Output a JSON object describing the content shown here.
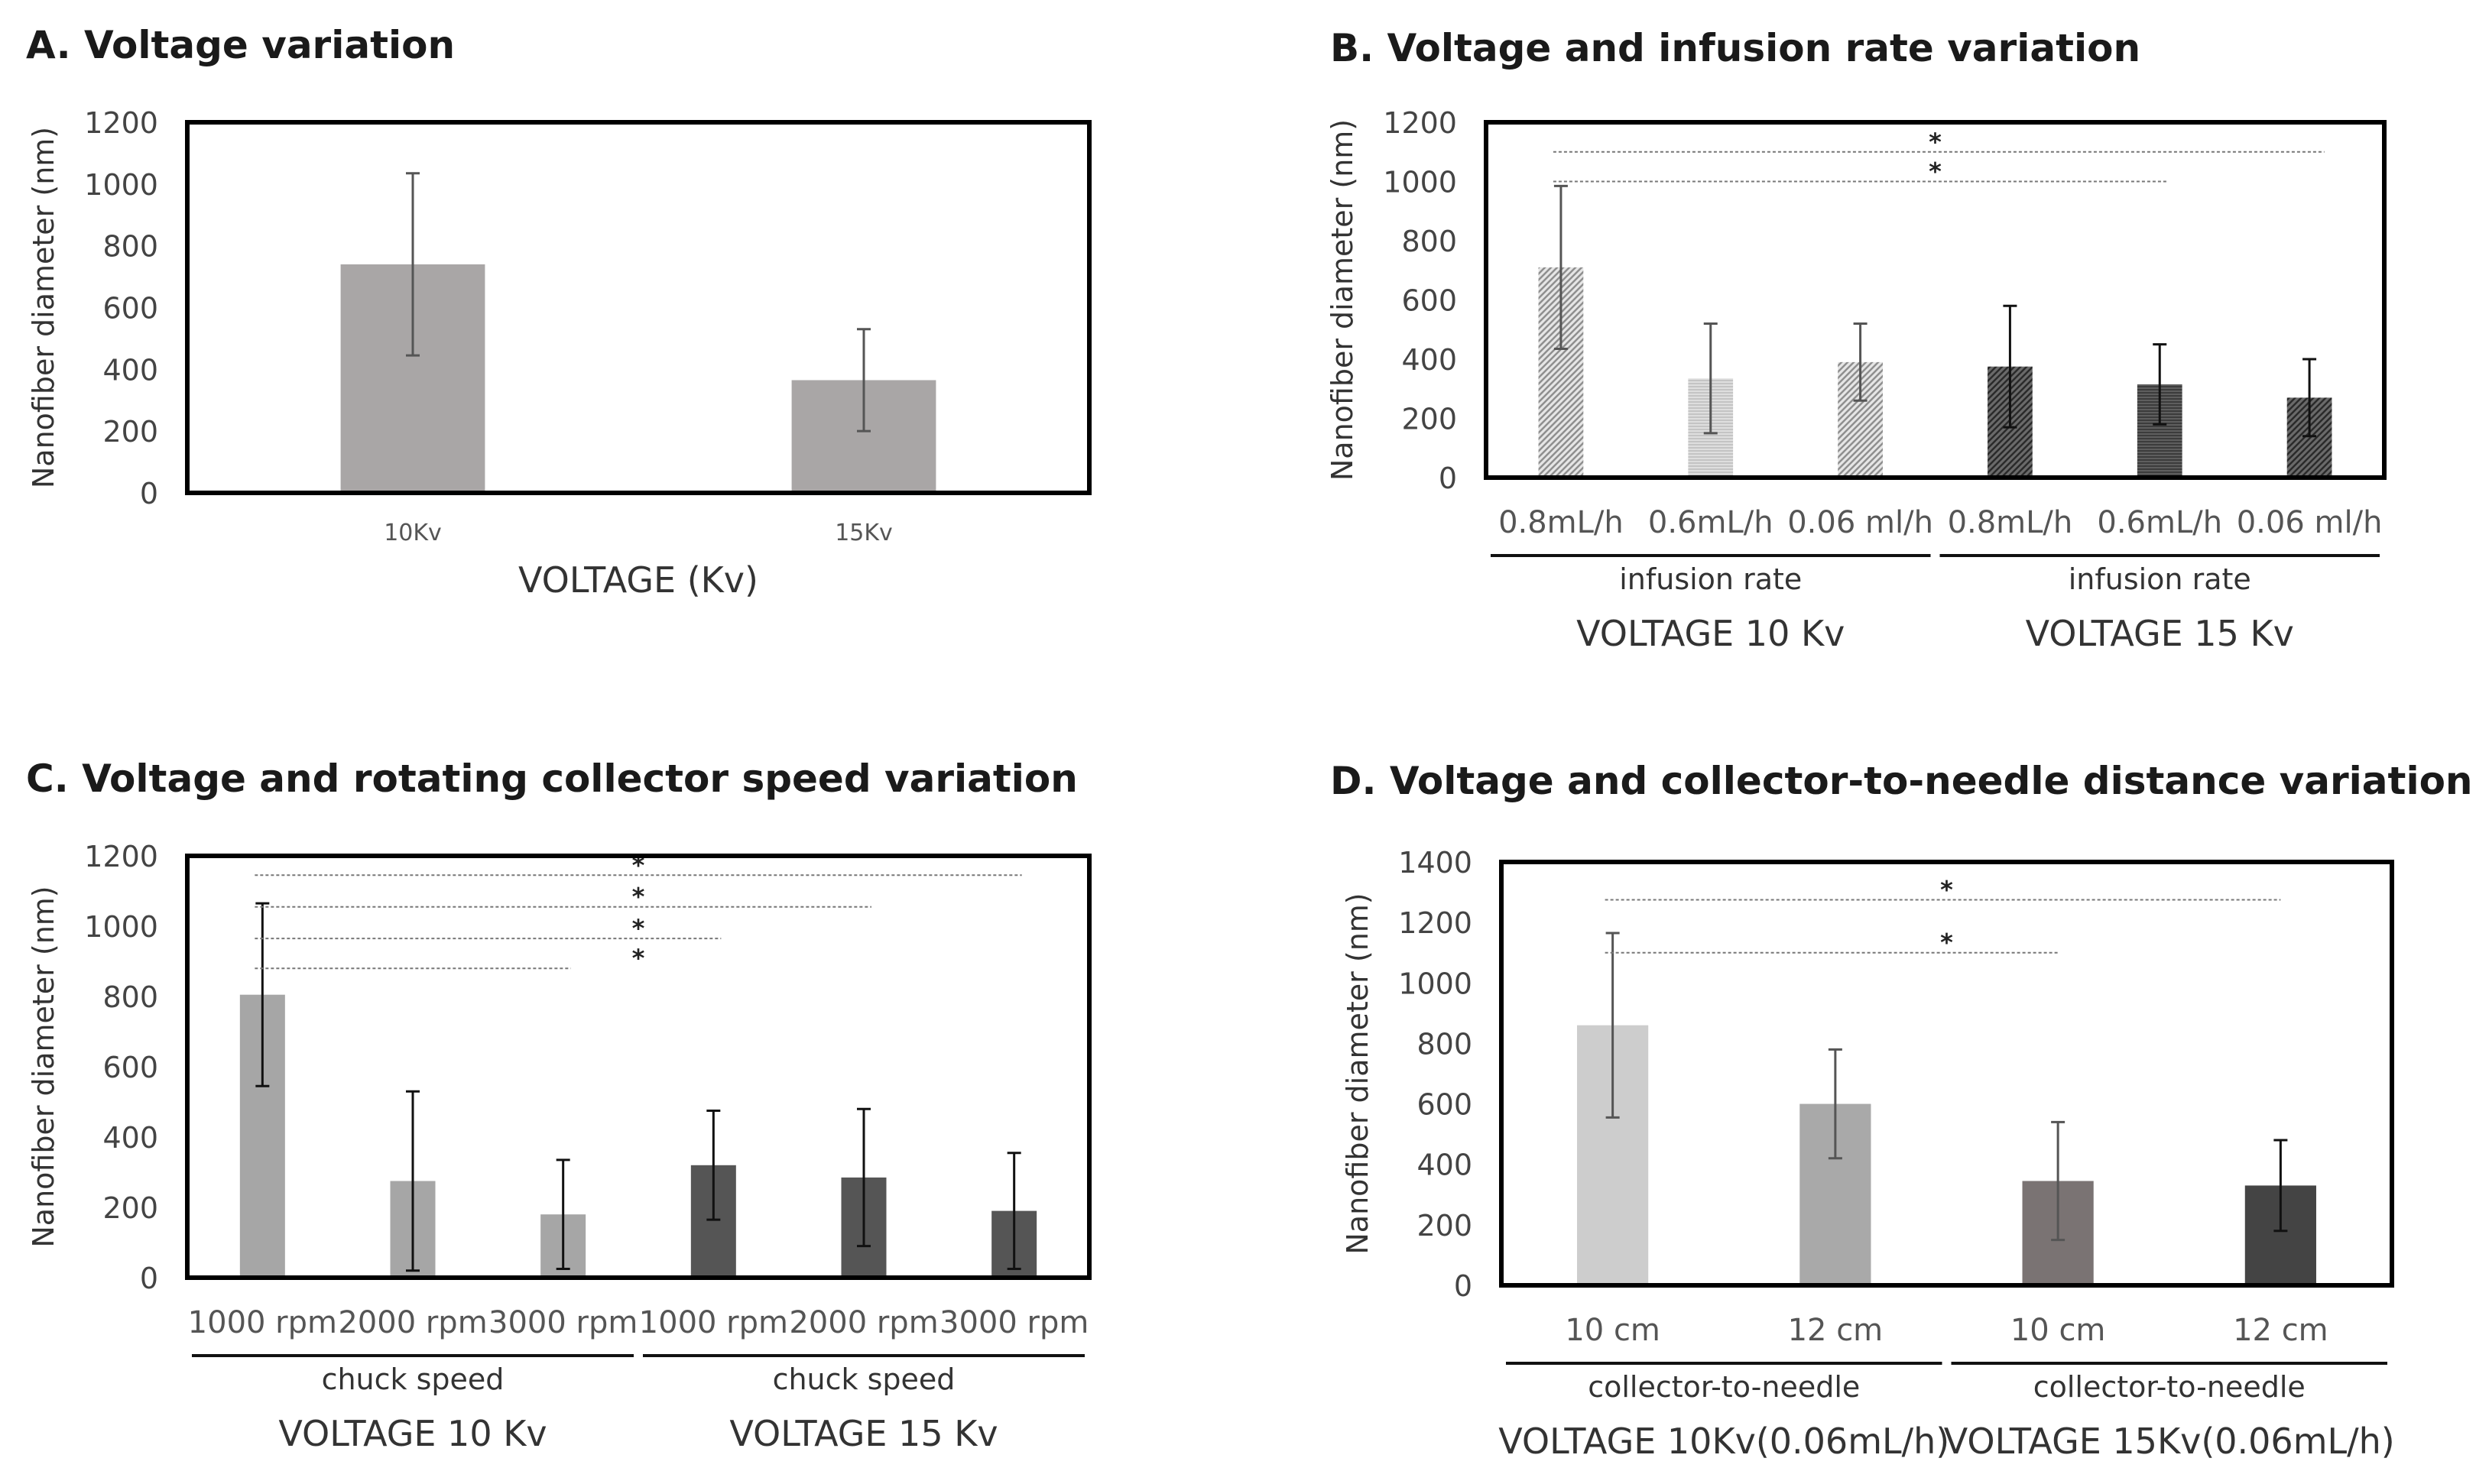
{
  "chart_data": [
    {
      "id": "A",
      "type": "bar",
      "title": "A. Voltage variation",
      "ylabel": "Nanofiber diameter (nm)",
      "xlabel": "VOLTAGE (Kv)",
      "ylim": [
        0,
        1200
      ],
      "yticks": [
        0,
        200,
        400,
        600,
        800,
        1000,
        1200
      ],
      "categories": [
        "10Kv",
        "15Kv"
      ],
      "values": [
        740,
        365
      ],
      "errors": [
        295,
        165
      ],
      "bar_colors": [
        "#a9a6a6",
        "#a9a6a6"
      ],
      "groups": [],
      "significance": []
    },
    {
      "id": "B",
      "type": "bar",
      "title": "B. Voltage and infusion rate variation",
      "ylabel": "Nanofiber diameter (nm)",
      "ylim": [
        0,
        1200
      ],
      "yticks": [
        0,
        200,
        400,
        600,
        800,
        1000,
        1200
      ],
      "categories": [
        "0.8mL/h",
        "0.6mL/h",
        "0.06 ml/h",
        "0.8mL/h",
        "0.6mL/h",
        "0.06 ml/h"
      ],
      "values": [
        710,
        335,
        390,
        375,
        315,
        270
      ],
      "errors": [
        275,
        185,
        130,
        205,
        135,
        130
      ],
      "bar_colors": [
        "#c4c4c4",
        "#c4c4c4",
        "#c4c4c4",
        "#3c3c3c",
        "#3c3c3c",
        "#3c3c3c"
      ],
      "bar_patterns": [
        "diag",
        "horiz",
        "diag",
        "diag",
        "horiz",
        "diag"
      ],
      "groups": [
        {
          "label": "infusion rate",
          "title": "VOLTAGE 10 Kv",
          "start": 0,
          "end": 2
        },
        {
          "label": "infusion rate",
          "title": "VOLTAGE 15 Kv",
          "start": 3,
          "end": 5
        }
      ],
      "significance": [
        {
          "from": 0,
          "to": 4,
          "label": "*",
          "y": 1100
        },
        {
          "from": 0,
          "to": 4,
          "label": "*",
          "y": 1000
        }
      ]
    },
    {
      "id": "C",
      "type": "bar",
      "title": "C. Voltage and rotating collector speed variation",
      "ylabel": "Nanofiber diameter (nm)",
      "ylim": [
        0,
        1200
      ],
      "yticks": [
        0,
        200,
        400,
        600,
        800,
        1000,
        1200
      ],
      "categories": [
        "1000 rpm",
        "2000 rpm",
        "3000 rpm",
        "1000 rpm",
        "2000 rpm",
        "3000 rpm"
      ],
      "values": [
        805,
        275,
        180,
        320,
        285,
        190
      ],
      "errors": [
        260,
        255,
        155,
        155,
        195,
        165
      ],
      "bar_colors": [
        "#a6a6a6",
        "#a6a6a6",
        "#a6a6a6",
        "#555555",
        "#555555",
        "#555555"
      ],
      "groups": [
        {
          "label": "chuck speed",
          "title": "VOLTAGE 10 Kv",
          "start": 0,
          "end": 2
        },
        {
          "label": "chuck speed",
          "title": "VOLTAGE 15 Kv",
          "start": 3,
          "end": 5
        }
      ],
      "significance": [
        {
          "from": 0,
          "to": 5,
          "label": "*",
          "y": 1145
        },
        {
          "from": 0,
          "to": 4,
          "label": "*",
          "y": 1055
        },
        {
          "from": 0,
          "to": 3,
          "label": "*",
          "y": 965
        },
        {
          "from": 0,
          "to": 2,
          "label": "*",
          "y": 880
        }
      ]
    },
    {
      "id": "D",
      "type": "bar",
      "title": "D. Voltage and collector-to-needle distance variation",
      "ylabel": "Nanofiber diameter (nm)",
      "ylim": [
        0,
        1400
      ],
      "yticks": [
        0,
        200,
        400,
        600,
        800,
        1000,
        1200,
        1400
      ],
      "categories": [
        "10 cm",
        "12 cm",
        "10 cm",
        "12 cm"
      ],
      "values": [
        860,
        600,
        345,
        330
      ],
      "errors": [
        305,
        180,
        195,
        150
      ],
      "bar_colors": [
        "#cdcdcd",
        "#a9a9a9",
        "#7a7373",
        "#444444"
      ],
      "groups": [
        {
          "label": "collector-to-needle",
          "title": "VOLTAGE 10Kv(0.06mL/h)",
          "start": 0,
          "end": 1
        },
        {
          "label": "collector-to-needle",
          "title": "VOLTAGE 15Kv(0.06mL/h)",
          "start": 2,
          "end": 3
        }
      ],
      "significance": [
        {
          "from": 0,
          "to": 3,
          "label": "*",
          "y": 1275
        },
        {
          "from": 0,
          "to": 2,
          "label": "*",
          "y": 1100
        }
      ]
    }
  ]
}
